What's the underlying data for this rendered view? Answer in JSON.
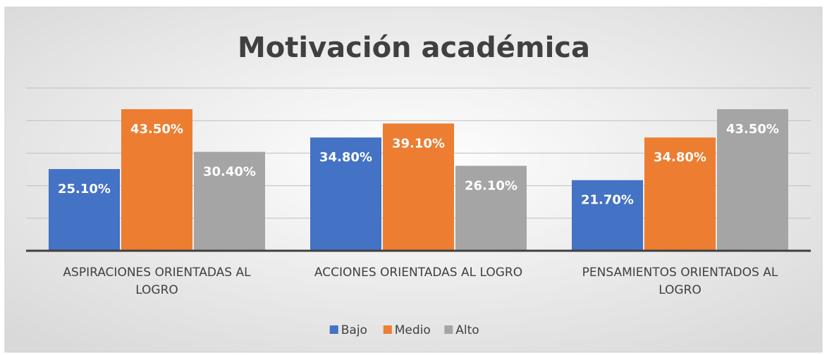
{
  "chart_data": {
    "type": "bar",
    "title": "Motivación académica",
    "categories": [
      "ASPIRACIONES ORIENTADAS AL LOGRO",
      "ACCIONES ORIENTADAS AL LOGRO",
      "PENSAMIENTOS ORIENTADOS AL LOGRO"
    ],
    "series": [
      {
        "name": "Bajo",
        "color": "#4472c4",
        "values": [
          25.1,
          34.8,
          21.7
        ],
        "value_labels": [
          "25.10%",
          "34.80%",
          "21.70%"
        ]
      },
      {
        "name": "Medio",
        "color": "#ed7d31",
        "values": [
          43.5,
          39.1,
          34.8
        ],
        "value_labels": [
          "43.50%",
          "39.10%",
          "34.80%"
        ]
      },
      {
        "name": "Alto",
        "color": "#a5a5a5",
        "values": [
          30.4,
          26.1,
          43.5
        ],
        "value_labels": [
          "30.40%",
          "26.10%",
          "43.50%"
        ]
      }
    ],
    "ylim": [
      0,
      50
    ],
    "yticks": [
      0,
      10,
      20,
      30,
      40,
      50
    ],
    "grid": true,
    "legend": "bottom"
  }
}
